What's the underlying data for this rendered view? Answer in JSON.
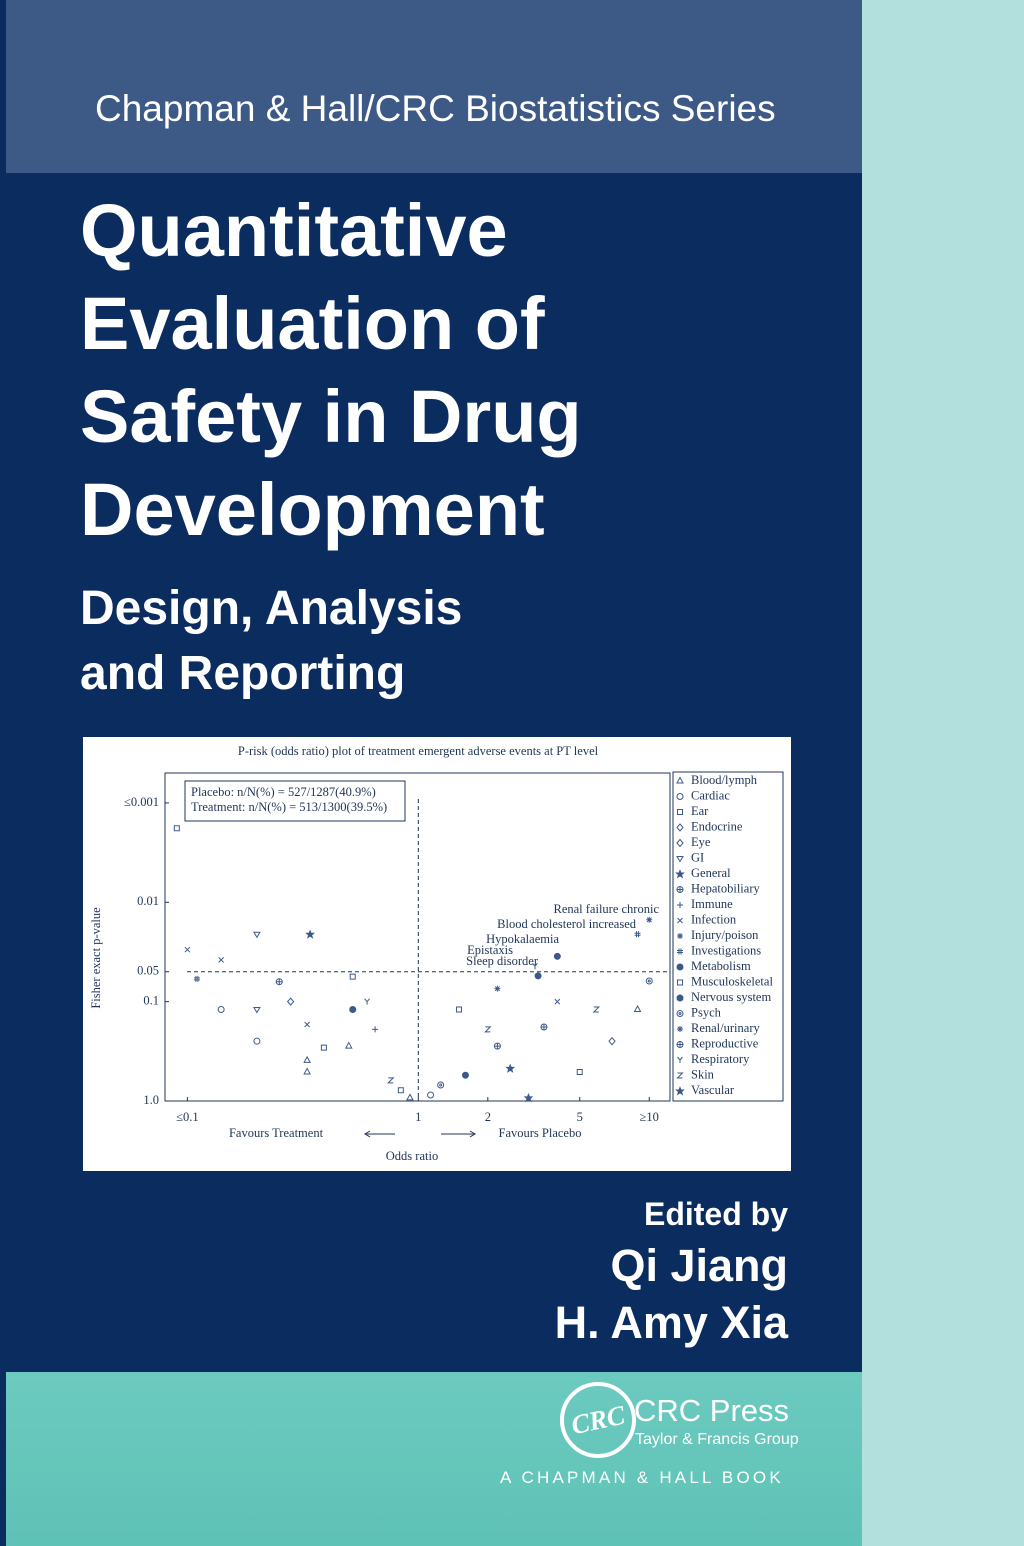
{
  "series_name": "Chapman & Hall/CRC Biostatistics Series",
  "title_lines": [
    "Quantitative",
    "Evaluation of",
    "Safety in Drug",
    "Development"
  ],
  "subtitle_lines": [
    "Design, Analysis",
    "and Reporting"
  ],
  "figure": {
    "chart_data": {
      "type": "scatter",
      "title": "P-risk (odds ratio) plot of treatment emergent adverse events at PT level",
      "x_label": "Odds ratio",
      "y_label": "Fisher exact p-value",
      "x_notes": [
        "Favours Treatment",
        "Favours Placebo"
      ],
      "info_box": [
        "Placebo: n/N(%) = 527/1287(40.9%)",
        "Treatment: n/N(%) = 513/1300(39.5%)"
      ],
      "annotations": [
        "Renal failure chronic",
        "Blood cholesterol increased",
        "Hypokalaemia",
        "Epistaxis",
        "Sleep disorder"
      ],
      "x_log": true,
      "y_log": true,
      "xlim": [
        0.08,
        12.3
      ],
      "ylim": [
        1,
        0.0005
      ],
      "xticks": [
        {
          "value": 0.1,
          "label": "≤0.1"
        },
        1,
        2,
        5,
        {
          "value": 10,
          "label": "≥10"
        }
      ],
      "yticks": [
        {
          "value": 0.001,
          "label": "≤0.001"
        },
        0.01,
        0.05,
        0.1,
        {
          "value": 1,
          "label": "1.0"
        }
      ],
      "ref_lines": {
        "x": 1,
        "y": 0.05
      },
      "color": "#3b5a8a",
      "series": [
        {
          "name": "Blood/lymph",
          "marker": "triangle",
          "x": [
            0.33,
            0.33,
            8.9,
            0.5,
            0.92
          ],
          "y": [
            0.39,
            0.51,
            0.12,
            0.28,
            0.93
          ]
        },
        {
          "name": "Cardiac",
          "marker": "circle",
          "x": [
            0.14,
            0.2,
            1.13
          ],
          "y": [
            0.12,
            0.25,
            0.87
          ]
        },
        {
          "name": "Ear",
          "marker": "square",
          "x": [
            0.09,
            5,
            0.39
          ],
          "y": [
            0.0018,
            0.51,
            0.29
          ]
        },
        {
          "name": "Endocrine",
          "marker": "diamond",
          "x": [
            6.9
          ],
          "y": [
            0.25
          ]
        },
        {
          "name": "Eye",
          "marker": "diamond",
          "x": [
            0.28
          ],
          "y": [
            0.1
          ]
        },
        {
          "name": "GI",
          "marker": "invtri",
          "x": [
            0.2,
            0.2
          ],
          "y": [
            0.021,
            0.12
          ]
        },
        {
          "name": "General",
          "marker": "star",
          "x": [
            0.34,
            2.5
          ],
          "y": [
            0.021,
            0.47
          ]
        },
        {
          "name": "Hepatobiliary",
          "marker": "circle-plus",
          "x": [
            0.25,
            2.2
          ],
          "y": [
            0.063,
            0.28
          ]
        },
        {
          "name": "Immune",
          "marker": "plus",
          "x": [
            0.65
          ],
          "y": [
            0.19
          ]
        },
        {
          "name": "Infection",
          "marker": "cross",
          "x": [
            0.1,
            0.14,
            0.33,
            4
          ],
          "y": [
            0.03,
            0.038,
            0.17,
            0.1
          ]
        },
        {
          "name": "Injury/poison",
          "marker": "asterisk",
          "x": [
            2.2
          ],
          "y": [
            0.074
          ]
        },
        {
          "name": "Investigations",
          "marker": "hash",
          "x": [
            0.11,
            8.9
          ],
          "y": [
            0.059,
            0.021
          ]
        },
        {
          "name": "Metabolism",
          "marker": "dot",
          "x": [
            4,
            0.52,
            1.6
          ],
          "y": [
            0.035,
            0.12,
            0.55
          ]
        },
        {
          "name": "Musculoskeletal",
          "marker": "square",
          "x": [
            0.52,
            1.5,
            0.84
          ],
          "y": [
            0.056,
            0.12,
            0.78
          ]
        },
        {
          "name": "Nervous system",
          "marker": "dot",
          "x": [
            3.3
          ],
          "y": [
            0.055
          ]
        },
        {
          "name": "Psych",
          "marker": "circle-dot",
          "x": [
            10,
            1.25
          ],
          "y": [
            0.062,
            0.69
          ]
        },
        {
          "name": "Renal/urinary",
          "marker": "asterisk",
          "x": [
            10
          ],
          "y": [
            0.015
          ]
        },
        {
          "name": "Reproductive",
          "marker": "circle-plus",
          "x": [
            3.5
          ],
          "y": [
            0.18
          ]
        },
        {
          "name": "Respiratory",
          "marker": "y",
          "x": [
            0.6,
            3.2
          ],
          "y": [
            0.1,
            0.044
          ]
        },
        {
          "name": "Skin",
          "marker": "z",
          "x": [
            5.9,
            2,
            0.76
          ],
          "y": [
            0.12,
            0.19,
            0.62
          ]
        },
        {
          "name": "Vascular",
          "marker": "star",
          "x": [
            3
          ],
          "y": [
            0.93
          ]
        }
      ]
    }
  },
  "edited_by": "Edited by",
  "editors": [
    "Qi Jiang",
    "H. Amy Xia"
  ],
  "publisher": {
    "logo": "CRC",
    "name": "CRC Press",
    "group": "Taylor & Francis Group",
    "imprint": "A CHAPMAN & HALL BOOK"
  }
}
